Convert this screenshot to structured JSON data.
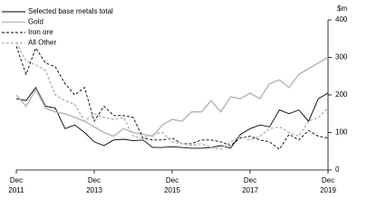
{
  "chart_data": {
    "type": "line",
    "y_label": "$m",
    "categories": [
      "Dec\n2011",
      null,
      null,
      null,
      null,
      null,
      null,
      null,
      "Dec\n2013",
      null,
      null,
      null,
      null,
      null,
      null,
      null,
      "Dec\n2015",
      null,
      null,
      null,
      null,
      null,
      null,
      null,
      "Dec\n2017",
      null,
      null,
      null,
      null,
      null,
      null,
      null,
      "Dec\n2019"
    ],
    "series": [
      {
        "name": "Selected base metals total",
        "color": "#000000",
        "dashed": false,
        "values": [
          190,
          185,
          220,
          170,
          165,
          110,
          120,
          100,
          75,
          65,
          80,
          82,
          78,
          80,
          60,
          60,
          62,
          60,
          58,
          58,
          60,
          65,
          58,
          95,
          110,
          120,
          115,
          160,
          150,
          160,
          130,
          190,
          205
        ]
      },
      {
        "name": "Gold",
        "color": "#bbbbbb",
        "dashed": false,
        "values": [
          200,
          170,
          215,
          165,
          155,
          150,
          140,
          130,
          115,
          100,
          90,
          110,
          100,
          95,
          90,
          120,
          135,
          130,
          155,
          155,
          185,
          155,
          195,
          190,
          205,
          190,
          230,
          240,
          220,
          255,
          270,
          285,
          300
        ]
      },
      {
        "name": "Iron ore",
        "color": "#000000",
        "dashed": true,
        "values": [
          330,
          255,
          325,
          285,
          275,
          230,
          200,
          220,
          130,
          170,
          145,
          145,
          140,
          85,
          80,
          80,
          85,
          70,
          70,
          80,
          80,
          75,
          65,
          85,
          90,
          80,
          75,
          55,
          95,
          80,
          105,
          90,
          85
        ]
      },
      {
        "name": "All Other",
        "color": "#bbbbbb",
        "dashed": true,
        "values": [
          340,
          290,
          280,
          265,
          200,
          185,
          175,
          130,
          150,
          140,
          135,
          140,
          90,
          85,
          95,
          100,
          75,
          70,
          65,
          70,
          60,
          55,
          75,
          90,
          80,
          90,
          110,
          115,
          100,
          90,
          130,
          140,
          165
        ]
      }
    ],
    "ylim": [
      0,
      400
    ],
    "yticks": [
      0,
      100,
      200,
      300,
      400
    ]
  }
}
